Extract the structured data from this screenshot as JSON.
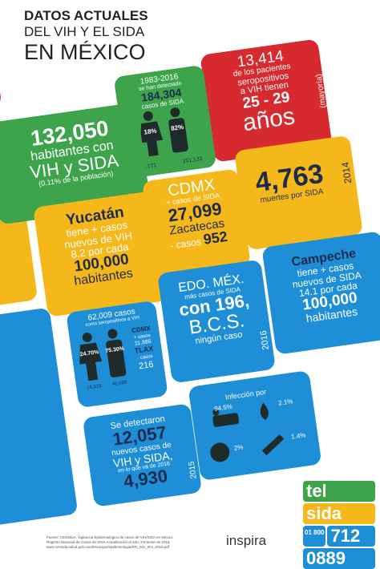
{
  "header": {
    "line1": "DATOS ACTUALES",
    "line2": "DEL VIH Y EL SIDA",
    "line3": "EN MÉXICO"
  },
  "tiles": {
    "red": {
      "lines": [
        "13,414",
        "de los pacientes",
        "seropositivos",
        "a VIH tienen",
        "25 - 29",
        "años"
      ],
      "side": "(mayoría)"
    },
    "detected": {
      "lines": [
        "1983-2016",
        "se han detectado",
        "184,304",
        "casos de SIDA"
      ],
      "women_pct": "18%",
      "men_pct": "82%",
      "women": "33,171",
      "men": "151,133"
    },
    "population": {
      "lines": [
        "132,050",
        "habitantes con",
        "VIH y SIDA",
        "(0.11% de la población)"
      ]
    },
    "deaths": {
      "lines": [
        "4,763",
        "muertes por SIDA"
      ],
      "side": "2014"
    },
    "cdmx": {
      "lines": [
        "CDMX",
        "+ casos de SIDA",
        "27,099",
        "Zacatecas",
        "- casos",
        "952"
      ]
    },
    "yucatan": {
      "lines": [
        "Yucatán",
        "tiene + casos",
        "nuevos de VIH",
        "8.2 por cada",
        "100,000",
        "habitantes"
      ]
    },
    "edomex": {
      "lines": [
        "EDO. MÉX.",
        "más casos de SIDA",
        "con 196,",
        "B.C.S.",
        "ningún caso"
      ],
      "side": "2016"
    },
    "campeche": {
      "lines": [
        "Campeche",
        "tiene + casos",
        "nuevos de SIDA",
        "14.1 por cada",
        "100,000",
        "habitantes"
      ]
    },
    "seropositive": {
      "lines": [
        "62,009 casos",
        "como seropositivos a VIH"
      ],
      "women_pct": "24.70%",
      "men_pct": "75.30%",
      "women": "15,319",
      "men": "46,690",
      "side": [
        "CDMX",
        "+ casos",
        "11,886",
        "TLAX",
        "- casos",
        "216"
      ]
    },
    "infection": {
      "title": "Infección por",
      "sexual": "94.5%",
      "blood": "2.1%",
      "perinatal": "2%",
      "drugs": "1.4%"
    },
    "new_cases": {
      "lines": [
        "Se detectaron",
        "12,057",
        "nuevos casos de",
        "VIH y SIDA,",
        "en lo que va de 2016",
        "4,930"
      ],
      "side": "2015"
    }
  },
  "footer": {
    "source": [
      "Fuente: CENSIDA. Vigilancia Epidemiológica de casos de VIH/SIDA en México",
      "Registro Nacional de Casos de SIDA Actualización al 2do. Trimestre de 2016.",
      "www.censida.salud.gob.mx/descargas/epidemiologia/RN_2do_trim_2016.pdf"
    ],
    "brand": "inspira",
    "logo": [
      "tel",
      "sida",
      "01 800",
      "712",
      "0889"
    ]
  }
}
